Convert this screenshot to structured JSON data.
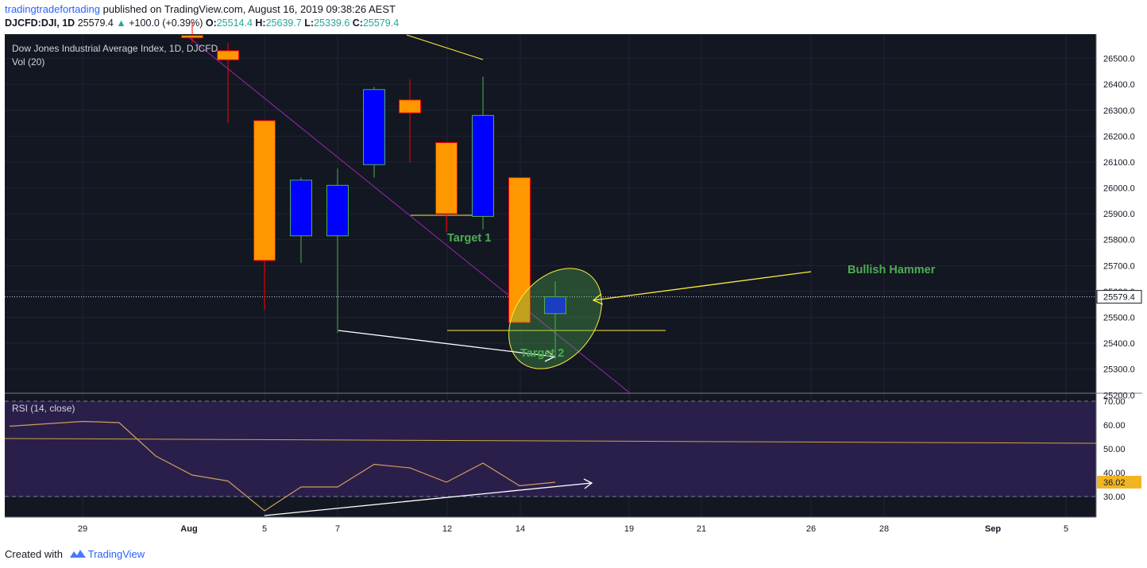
{
  "header": {
    "author": "tradingtradefortading",
    "published": "published on TradingView.com, August 16, 2019 09:38:26 AEST",
    "symbol": "DJCFD:DJI, 1D",
    "last": "25579.4",
    "change": "+100.0 (+0.39%)",
    "o_label": "O:",
    "o": "25514.4",
    "h_label": "H:",
    "h": "25639.7",
    "l_label": "L:",
    "l": "25339.6",
    "c_label": "C:",
    "c": "25579.4"
  },
  "legend": {
    "title": "Dow Jones Industrial Average Index, 1D, DJCFD",
    "vol": "Vol (20)",
    "rsi": "RSI (14, close)"
  },
  "annotations": {
    "target1": "Target 1",
    "target2": "Target 2",
    "hammer": "Bullish Hammer"
  },
  "footer": {
    "created": "Created with",
    "brand": "TradingView"
  },
  "colors": {
    "background": "#131722",
    "bear": "#ff9800",
    "bull": "#0000ff",
    "bull_border": "#4caf50",
    "bear_wick": "#ff0000",
    "bull_wick": "#4caf50",
    "annotation_green": "#4caf50",
    "trend": "#9c27b0",
    "yellow": "#ffeb3b",
    "rsi_fill": "#2a1f4a",
    "rsi_line": "#d39b5d"
  },
  "chart_data": [
    {
      "type": "candlestick",
      "title": "Dow Jones Industrial Average Index, 1D, DJCFD",
      "x_ticks": [
        "29",
        "Aug",
        "5",
        "7",
        "12",
        "14",
        "19",
        "21",
        "26",
        "28",
        "Sep",
        "5"
      ],
      "y_ticks": [
        "25200.0",
        "25300.0",
        "25400.0",
        "25500.0",
        "25600.0",
        "25700.0",
        "25800.0",
        "25900.0",
        "26000.0",
        "26100.0",
        "26200.0",
        "26300.0",
        "26400.0",
        "26500.0"
      ],
      "ylim": [
        25200,
        26600
      ],
      "last_price": "25579.4",
      "candles": [
        {
          "date": "Jul 31",
          "open": 26589,
          "high": 26640,
          "low": 26560,
          "close": 26580
        },
        {
          "date": "Aug 1",
          "open": 26530,
          "high": 26560,
          "low": 26250,
          "close": 26495
        },
        {
          "date": "Aug 2",
          "open": 26260,
          "high": 26260,
          "low": 25530,
          "close": 25720
        },
        {
          "date": "Aug 5",
          "open": 25815,
          "high": 26040,
          "low": 25710,
          "close": 26030
        },
        {
          "date": "Aug 6",
          "open": 25815,
          "high": 26075,
          "low": 25440,
          "close": 26010
        },
        {
          "date": "Aug 7",
          "open": 26090,
          "high": 26390,
          "low": 26040,
          "close": 26380
        },
        {
          "date": "Aug 8",
          "open": 26340,
          "high": 26420,
          "low": 26100,
          "close": 26290
        },
        {
          "date": "Aug 9",
          "open": 26175,
          "high": 26175,
          "low": 25830,
          "close": 25900
        },
        {
          "date": "Aug 12",
          "open": 25890,
          "high": 26430,
          "low": 25840,
          "close": 26280
        },
        {
          "date": "Aug 13",
          "open": 26040,
          "high": 26040,
          "low": 25480,
          "close": 25480
        },
        {
          "date": "Aug 14",
          "open": 25514.4,
          "high": 25639.7,
          "low": 25339.6,
          "close": 25579.4
        }
      ]
    },
    {
      "type": "line",
      "title": "RSI (14, close)",
      "y_ticks": [
        "30.00",
        "40.00",
        "50.00",
        "60.00",
        "70.00"
      ],
      "ylim": [
        20,
        73
      ],
      "bands": [
        30,
        70
      ],
      "last_value": "36.02",
      "values": [
        59.5,
        61.5,
        61,
        47,
        39,
        36.5,
        24,
        34,
        34,
        43.5,
        42,
        36,
        44,
        34.5,
        36
      ]
    }
  ]
}
